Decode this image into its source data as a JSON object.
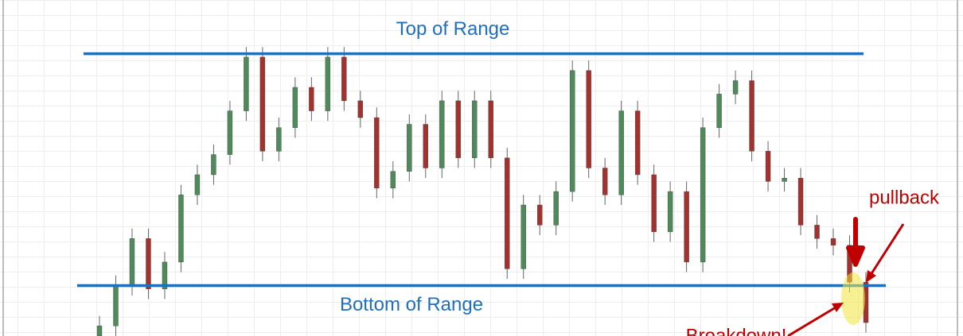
{
  "chart_data": {
    "type": "candlestick",
    "categories": [
      null,
      null,
      null,
      null,
      null,
      null,
      null,
      null,
      null,
      null,
      null,
      null,
      null,
      null,
      null,
      null,
      null,
      null,
      null,
      null,
      null,
      null,
      null,
      null,
      null,
      null,
      null,
      null,
      null,
      null,
      null,
      null,
      null,
      null,
      null,
      null,
      null,
      null,
      null,
      null,
      null,
      null,
      null,
      null,
      null,
      null,
      null,
      null
    ],
    "open": [
      0,
      3,
      15,
      29,
      14,
      22,
      42,
      48,
      54,
      67,
      83,
      55,
      62,
      74,
      67,
      83,
      70,
      65,
      44,
      49,
      63,
      50,
      70,
      53,
      70,
      53,
      20,
      39,
      33,
      43,
      79,
      50,
      42,
      67,
      48,
      31,
      43,
      22,
      62,
      72,
      76,
      55,
      46,
      47,
      33,
      29,
      27,
      16
    ],
    "high": [
      6,
      18,
      32,
      32,
      25,
      45,
      51,
      57,
      70,
      86,
      86,
      65,
      77,
      77,
      86,
      86,
      73,
      68,
      52,
      66,
      66,
      73,
      73,
      73,
      73,
      56,
      42,
      42,
      46,
      82,
      82,
      53,
      70,
      70,
      51,
      46,
      46,
      65,
      75,
      79,
      79,
      58,
      50,
      50,
      36,
      32,
      30,
      19
    ],
    "low": [
      0,
      0,
      12,
      11,
      11,
      19,
      39,
      45,
      51,
      64,
      52,
      52,
      59,
      64,
      64,
      67,
      62,
      41,
      41,
      46,
      47,
      47,
      50,
      50,
      50,
      17,
      17,
      30,
      30,
      40,
      47,
      39,
      39,
      45,
      28,
      28,
      19,
      19,
      59,
      69,
      52,
      43,
      43,
      30,
      26,
      24,
      13,
      1
    ],
    "close": [
      3,
      15,
      29,
      14,
      22,
      42,
      48,
      54,
      67,
      83,
      55,
      62,
      74,
      67,
      83,
      70,
      65,
      44,
      49,
      63,
      50,
      70,
      53,
      70,
      53,
      20,
      39,
      33,
      43,
      79,
      50,
      42,
      67,
      48,
      31,
      43,
      22,
      62,
      72,
      76,
      55,
      46,
      47,
      33,
      29,
      27,
      16,
      4
    ],
    "up_color": "#4f8a5b",
    "down_color": "#a3322f",
    "ylim": [
      0,
      100
    ],
    "levels": [
      {
        "label": "Top of Range",
        "value": 84,
        "color": "#1f6fbf"
      },
      {
        "label": "Bottom of Range",
        "value": 15,
        "color": "#1f6fbf"
      }
    ],
    "annotations": [
      "pullback",
      "Breakdown!"
    ]
  }
}
